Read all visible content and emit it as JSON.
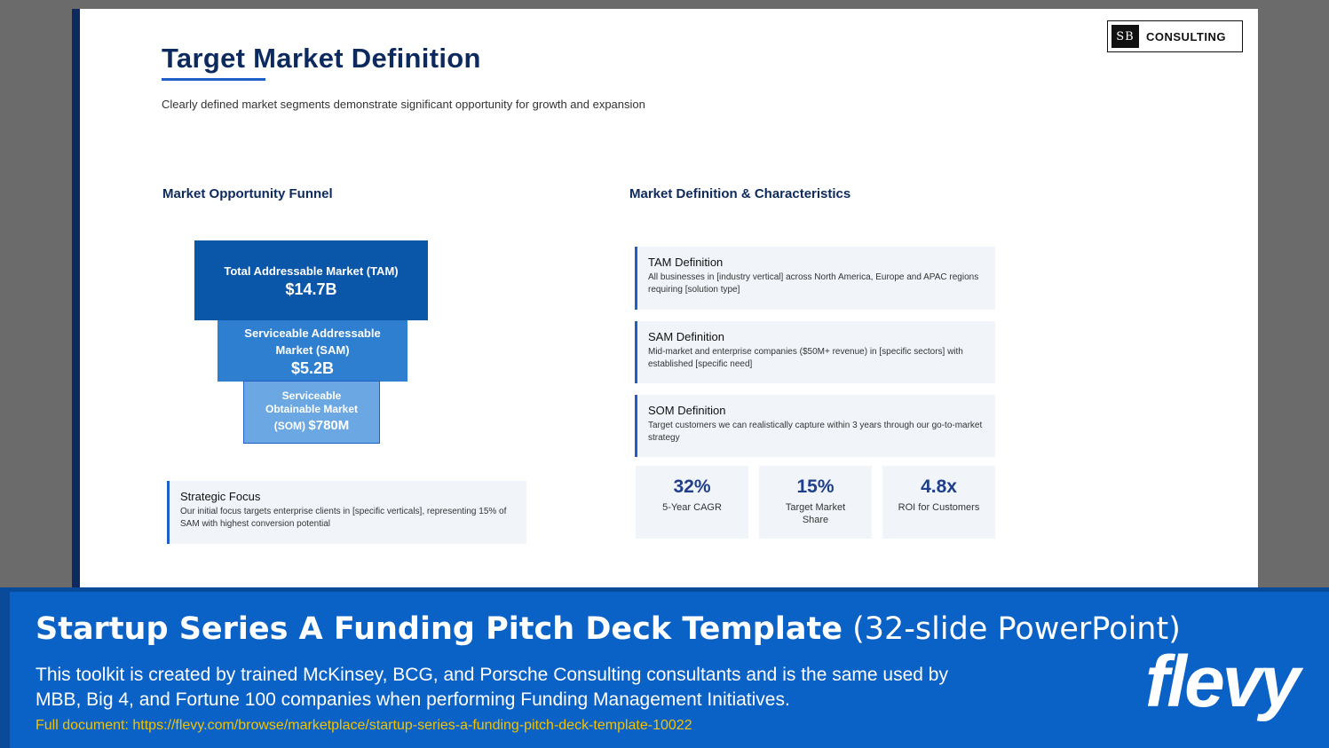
{
  "slide": {
    "logo_mark": "SB",
    "logo_text": "CONSULTING",
    "title": "Target Market Definition",
    "subtitle": "Clearly defined market segments demonstrate significant opportunity for growth and expansion",
    "left_heading": "Market Opportunity Funnel",
    "right_heading": "Market Definition & Characteristics",
    "funnel": {
      "tam_label": "Total Addressable Market (TAM)",
      "tam_value": "$14.7B",
      "sam_label": "Serviceable Addressable Market (SAM)",
      "sam_value": "$5.2B",
      "som_label": "Serviceable Obtainable Market",
      "som_abbr": "(SOM)",
      "som_value": "$780M"
    },
    "strategic_focus": {
      "title": "Strategic Focus",
      "text": "Our initial focus targets enterprise clients in [specific verticals], representing 15% of SAM with highest conversion potential"
    },
    "definitions": [
      {
        "title": "TAM Definition",
        "text": "All businesses in [industry vertical] across North America, Europe and APAC regions requiring [solution type]"
      },
      {
        "title": "SAM Definition",
        "text": "Mid-market and enterprise companies ($50M+ revenue) in [specific sectors] with established [specific need]"
      },
      {
        "title": "SOM Definition",
        "text": "Target customers we can realistically capture within 3 years through our go-to-market strategy"
      }
    ],
    "metrics": [
      {
        "value": "32%",
        "label": "5-Year CAGR"
      },
      {
        "value": "15%",
        "label": "Target Market Share"
      },
      {
        "value": "4.8x",
        "label": "ROI for Customers"
      }
    ]
  },
  "banner": {
    "title_bold": "Startup Series A Funding Pitch Deck Template",
    "title_light": "(32-slide PowerPoint)",
    "description": "This toolkit is created by trained McKinsey, BCG, and Porsche Consulting consultants and is the same used by MBB, Big 4, and Fortune 100 companies when performing Funding Management Initiatives.",
    "link": "Full document: https://flevy.com/browse/marketplace/startup-series-a-funding-pitch-deck-template-10022",
    "brand_main": "flevy"
  }
}
